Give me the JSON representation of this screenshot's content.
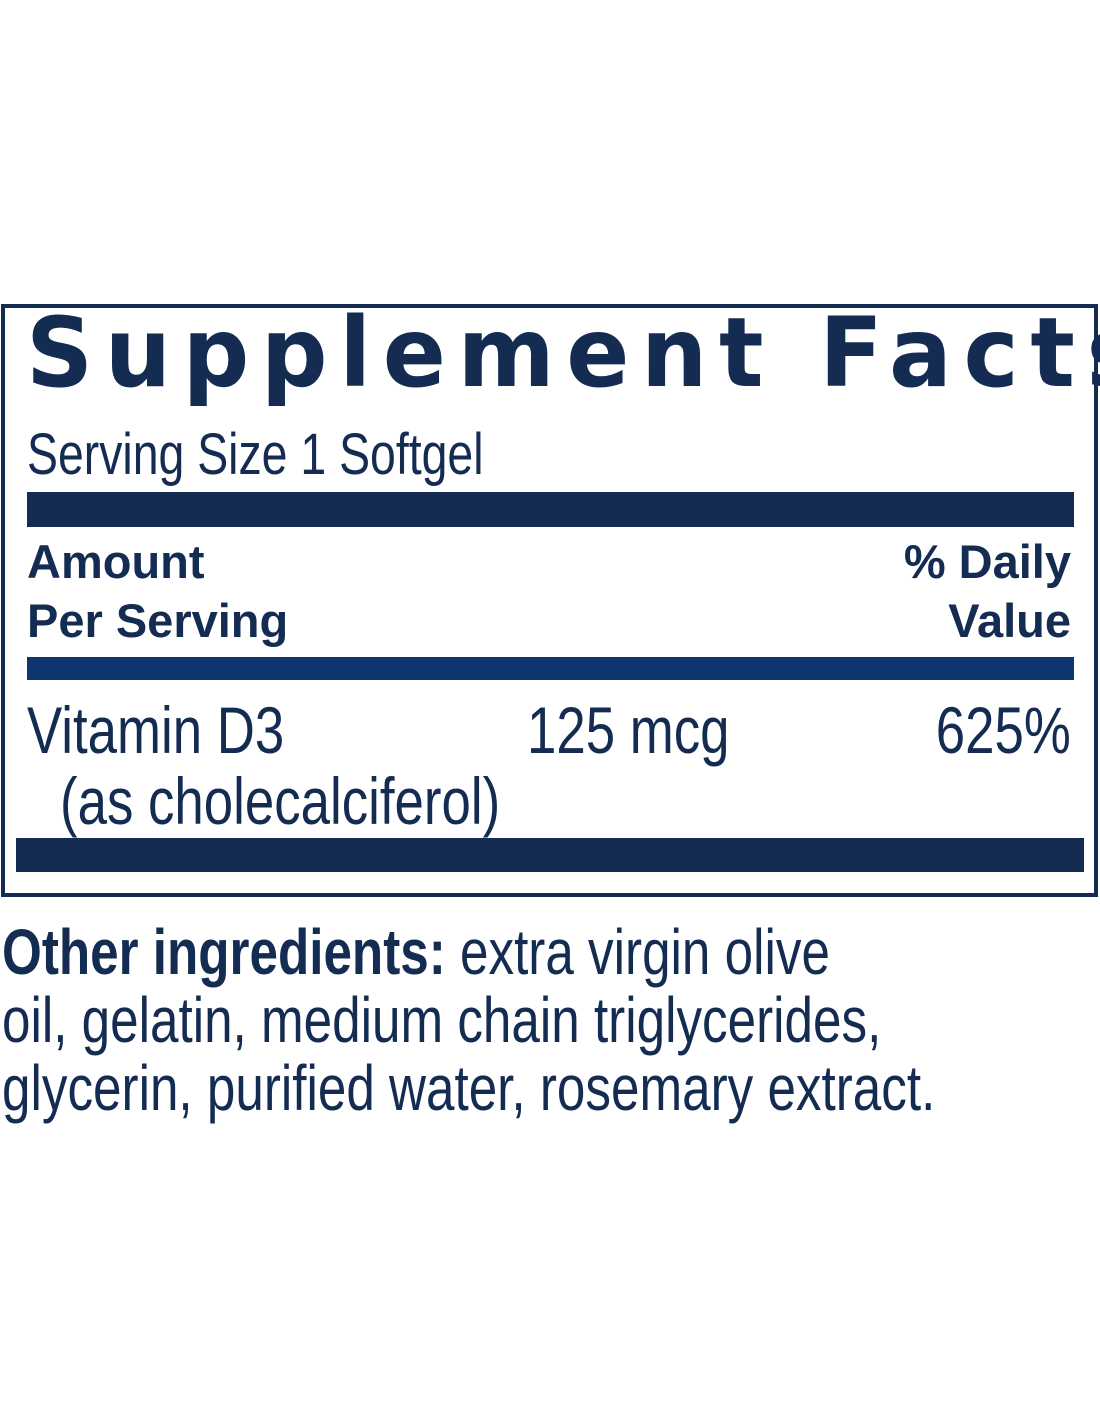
{
  "label": {
    "title": "Supplement Facts",
    "serving_size": "Serving Size 1 Softgel",
    "header": {
      "amount_line1": "Amount",
      "amount_line2": "Per Serving",
      "dv_line1": "% Daily",
      "dv_line2": "Value"
    },
    "rows": [
      {
        "name": "Vitamin D3",
        "subname": "(as cholecalciferol)",
        "amount": "125 mcg",
        "dv": "625%"
      }
    ],
    "other_ingredients": {
      "label": "Other ingredients:",
      "line1": " extra virgin olive",
      "line2": "oil, gelatin, medium chain triglycerides,",
      "line3": "glycerin, purified water, rosemary extract."
    }
  },
  "colors": {
    "navy": "#142b52",
    "blue_bar": "#0f3570"
  }
}
